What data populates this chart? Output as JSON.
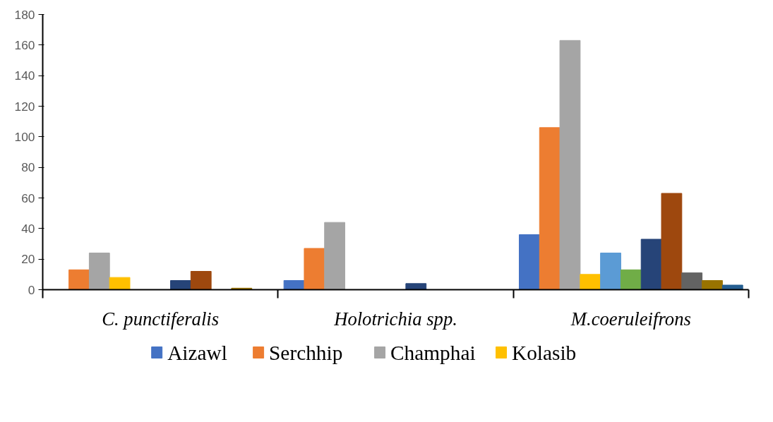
{
  "chart_data": {
    "type": "bar",
    "categories": [
      "C. punctiferalis",
      "Holotrichia spp.",
      "M.coeruleifrons"
    ],
    "ylim": [
      0,
      180
    ],
    "yticks": [
      0,
      20,
      40,
      60,
      80,
      100,
      120,
      140,
      160,
      180
    ],
    "grid": false,
    "legend": "bottom",
    "series": [
      {
        "name": "Aizawl",
        "color": "#4472c4",
        "values": [
          0,
          6,
          36
        ]
      },
      {
        "name": "Serchhip",
        "color": "#ed7d31",
        "values": [
          13,
          27,
          106
        ]
      },
      {
        "name": "Champhai",
        "color": "#a5a5a5",
        "values": [
          24,
          44,
          163
        ]
      },
      {
        "name": "Kolasib",
        "color": "#ffc000",
        "values": [
          8,
          0,
          10
        ]
      },
      {
        "color": "#5b9bd5",
        "values": [
          0,
          0,
          24
        ]
      },
      {
        "color": "#70ad47",
        "values": [
          0,
          0,
          13
        ]
      },
      {
        "color": "#264478",
        "values": [
          6,
          4,
          33
        ]
      },
      {
        "color": "#9e480e",
        "values": [
          12,
          0,
          63
        ]
      },
      {
        "color": "#636363",
        "values": [
          0,
          0,
          11
        ]
      },
      {
        "color": "#997300",
        "values": [
          1,
          0,
          6
        ]
      },
      {
        "color": "#255e91",
        "values": [
          0,
          0,
          3
        ]
      }
    ]
  }
}
